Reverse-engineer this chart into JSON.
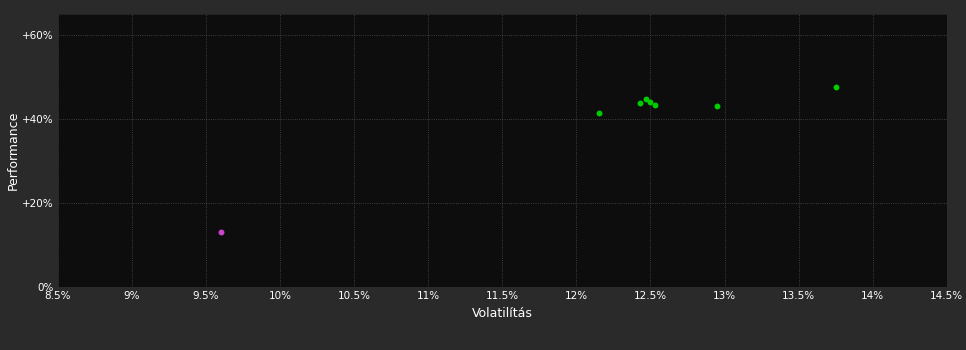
{
  "background_color": "#2a2a2a",
  "plot_bg_color": "#0d0d0d",
  "grid_color": "#555555",
  "text_color": "#ffffff",
  "xlabel": "Volatilítás",
  "ylabel": "Performance",
  "xlim": [
    0.085,
    0.145
  ],
  "ylim": [
    0.0,
    0.65
  ],
  "xticks": [
    0.085,
    0.09,
    0.095,
    0.1,
    0.105,
    0.11,
    0.115,
    0.12,
    0.125,
    0.13,
    0.135,
    0.14,
    0.145
  ],
  "xtick_labels": [
    "8.5%",
    "9%",
    "9.5%",
    "10%",
    "10.5%",
    "11%",
    "11.5%",
    "12%",
    "12.5%",
    "13%",
    "13.5%",
    "14%",
    "14.5%"
  ],
  "yticks": [
    0.0,
    0.2,
    0.4,
    0.6
  ],
  "ytick_labels": [
    "0%",
    "+20%",
    "+40%",
    "+60%"
  ],
  "green_points": [
    [
      0.1215,
      0.415
    ],
    [
      0.1243,
      0.437
    ],
    [
      0.1247,
      0.447
    ],
    [
      0.125,
      0.441
    ],
    [
      0.1253,
      0.434
    ],
    [
      0.1295,
      0.432
    ],
    [
      0.1375,
      0.477
    ]
  ],
  "magenta_points": [
    [
      0.096,
      0.132
    ]
  ],
  "point_size": 18,
  "green_color": "#00cc00",
  "magenta_color": "#cc44cc"
}
